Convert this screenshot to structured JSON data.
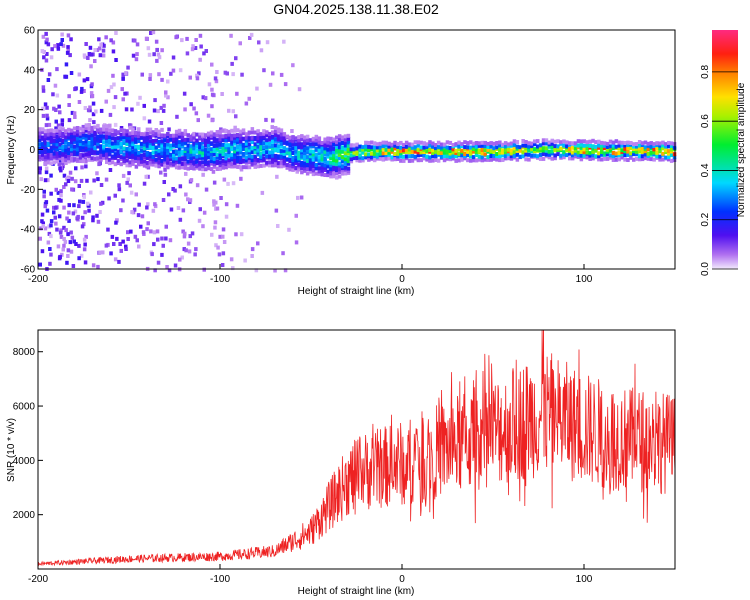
{
  "title": "GN04.2025.138.11.38.E02",
  "chart_data": [
    {
      "type": "heatmap",
      "xlabel": "Height of straight line (km)",
      "ylabel": "Frequency (Hz)",
      "xlim": [
        -200,
        150
      ],
      "ylim": [
        -60,
        60
      ],
      "xticks": [
        -200,
        -100,
        0,
        100
      ],
      "yticks": [
        -60,
        -40,
        -20,
        0,
        20,
        40,
        60
      ],
      "colorbar": {
        "label": "Normalized spectral amplitude",
        "range": [
          0,
          0.97
        ],
        "ticks": [
          0.0,
          0.2,
          0.4,
          0.6,
          0.8
        ],
        "colormap": "rainbow (purple-blue-cyan-green-yellow-orange-red-pink)"
      },
      "band": {
        "center_hz": [
          {
            "x": -190,
            "y": 3
          },
          {
            "x": -170,
            "y": 4
          },
          {
            "x": -150,
            "y": 2
          },
          {
            "x": -130,
            "y": 1
          },
          {
            "x": -110,
            "y": 0
          },
          {
            "x": -90,
            "y": 1
          },
          {
            "x": -70,
            "y": 2
          },
          {
            "x": -55,
            "y": -2
          },
          {
            "x": -40,
            "y": -3
          },
          {
            "x": -30,
            "y": -1
          },
          {
            "x": -20,
            "y": 0
          },
          {
            "x": 0,
            "y": 0
          },
          {
            "x": 50,
            "y": 0
          },
          {
            "x": 80,
            "y": 1
          },
          {
            "x": 150,
            "y": 0
          }
        ],
        "peak_amplitude_by_height": [
          {
            "x": -200,
            "a": 0.3
          },
          {
            "x": -150,
            "a": 0.4
          },
          {
            "x": -100,
            "a": 0.45
          },
          {
            "x": -60,
            "a": 0.4
          },
          {
            "x": -40,
            "a": 0.55
          },
          {
            "x": -20,
            "a": 0.8
          },
          {
            "x": 0,
            "a": 0.95
          },
          {
            "x": 50,
            "a": 0.95
          },
          {
            "x": 80,
            "a": 0.7
          },
          {
            "x": 100,
            "a": 0.95
          },
          {
            "x": 150,
            "a": 0.95
          }
        ]
      }
    },
    {
      "type": "line",
      "xlabel": "Height of straight line (km)",
      "ylabel": "SNR (10 * v/v)",
      "xlim": [
        -200,
        150
      ],
      "ylim": [
        0,
        8800
      ],
      "xticks": [
        -200,
        -100,
        0,
        100
      ],
      "yticks": [
        2000,
        4000,
        6000,
        8000
      ],
      "color": "#ee2222",
      "series": [
        {
          "envelope": [
            {
              "x": -200,
              "y": 200
            },
            {
              "x": -150,
              "y": 400
            },
            {
              "x": -100,
              "y": 500
            },
            {
              "x": -70,
              "y": 700
            },
            {
              "x": -50,
              "y": 1500
            },
            {
              "x": -40,
              "y": 2500
            },
            {
              "x": -30,
              "y": 3500
            },
            {
              "x": -20,
              "y": 3900
            },
            {
              "x": 0,
              "y": 4200
            },
            {
              "x": 20,
              "y": 4700
            },
            {
              "x": 40,
              "y": 5200
            },
            {
              "x": 55,
              "y": 5600
            },
            {
              "x": 70,
              "y": 6000
            },
            {
              "x": 80,
              "y": 6200
            },
            {
              "x": 100,
              "y": 5600
            },
            {
              "x": 120,
              "y": 5200
            },
            {
              "x": 150,
              "y": 5000
            }
          ],
          "peak": {
            "x": 77,
            "y": 8800
          }
        }
      ]
    }
  ]
}
